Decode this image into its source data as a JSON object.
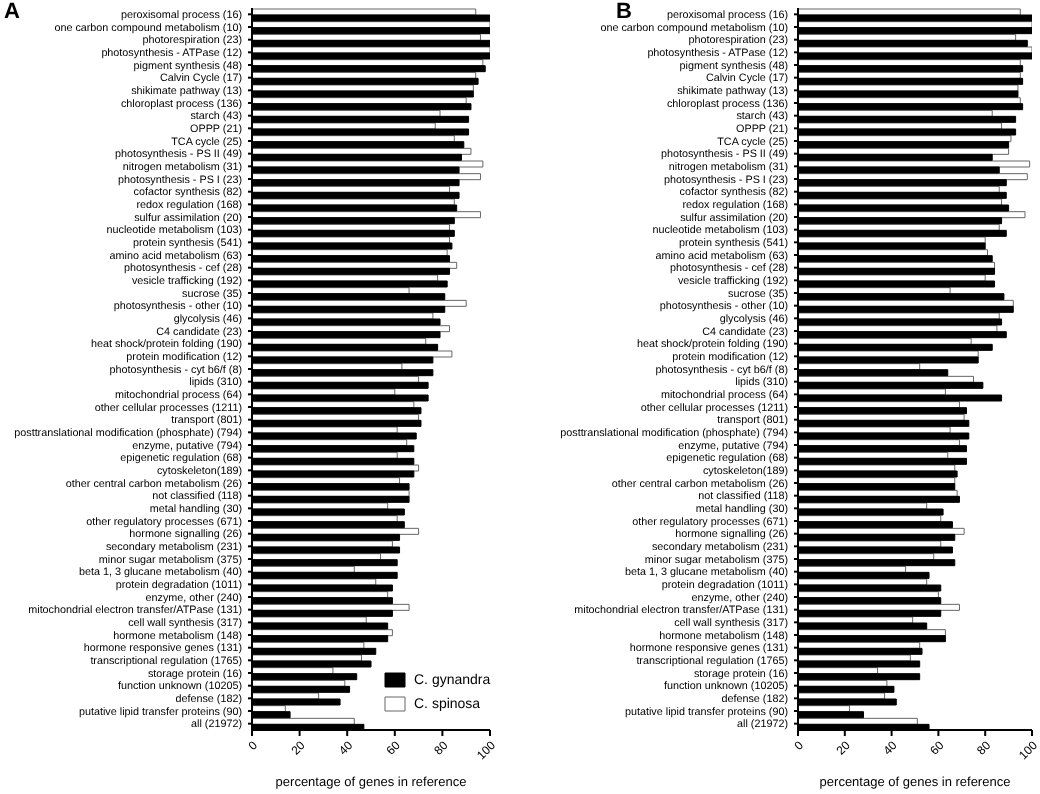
{
  "chart_data": [
    {
      "type": "bar",
      "orientation": "horizontal",
      "title": "A",
      "xlabel": "percentage of genes in reference",
      "xlim": [
        0,
        100
      ],
      "xticks": [
        0,
        20,
        40,
        60,
        80,
        100
      ],
      "legend": "bottom right",
      "categories": [
        "peroxisomal process (16)",
        "one carbon compound metabolism (10)",
        "photorespiration (23)",
        "photosynthesis - ATPase (12)",
        "pigment synthesis (48)",
        "Calvin Cycle (17)",
        "shikimate pathway (13)",
        "chloroplast process (136)",
        "starch (43)",
        "OPPP (21)",
        "TCA cycle (25)",
        "photosynthesis - PS II (49)",
        "nitrogen metabolism (31)",
        "photosynthesis - PS I (23)",
        "cofactor synthesis (82)",
        "redox regulation (168)",
        "sulfur assimilation (20)",
        "nucleotide metabolism (103)",
        "protein synthesis (541)",
        "amino acid metabolism (63)",
        "photosynthesis - cef (28)",
        "vesicle trafficking (192)",
        "sucrose (35)",
        "photosynthesis - other (10)",
        "glycolysis (46)",
        "C4 candidate (23)",
        "heat shock/protein folding (190)",
        "protein modification (12)",
        "photosynthesis - cyt b6/f (8)",
        "lipids (310)",
        "mitochondrial process (64)",
        "other cellular processes (1211)",
        "transport (801)",
        "posttranslational modification (phosphate) (794)",
        "enzyme, putative (794)",
        "epigenetic regulation (68)",
        "cytoskeleton(189)",
        "other central carbon metabolism (26)",
        "not classified (118)",
        "metal handling (30)",
        "other regulatory processes (671)",
        "hormone signalling (26)",
        "secondary metabolism (231)",
        "minor sugar metabolism (375)",
        "beta 1, 3 glucane metabolism (40)",
        "protein degradation (1011)",
        "enzyme, other (240)",
        "mitochondrial electron transfer/ATPase (131)",
        "cell wall synthesis (317)",
        "hormone metabolism (148)",
        "hormone responsive genes (131)",
        "transcriptional regulation (1765)",
        "storage protein (16)",
        "function unknown (10205)",
        "defense (182)",
        "putative lipid transfer proteins (90)",
        "all (21972)"
      ],
      "series": [
        {
          "name": "C. gynandra",
          "color": "#000000",
          "values": [
            100,
            100,
            100,
            100,
            98,
            95,
            93,
            92,
            91,
            91,
            89,
            88,
            87,
            87,
            87,
            86,
            85,
            85,
            84,
            83,
            83,
            82,
            81,
            81,
            79,
            79,
            78,
            76,
            76,
            74,
            74,
            71,
            71,
            69,
            68,
            68,
            68,
            66,
            66,
            64,
            64,
            62,
            62,
            61,
            61,
            59,
            59,
            59,
            57,
            57,
            52,
            50,
            44,
            41,
            37,
            16,
            47
          ]
        },
        {
          "name": "C. spinosa",
          "color": "#ffffff",
          "values": [
            94,
            100,
            96,
            100,
            97,
            94,
            93,
            90,
            79,
            77,
            85,
            92,
            97,
            96,
            83,
            85,
            96,
            83,
            83,
            82,
            86,
            78,
            66,
            90,
            76,
            83,
            73,
            84,
            63,
            70,
            60,
            68,
            70,
            61,
            65,
            61,
            70,
            62,
            66,
            57,
            61,
            70,
            59,
            54,
            43,
            52,
            57,
            66,
            48,
            59,
            47,
            46,
            34,
            39,
            28,
            14,
            43
          ]
        }
      ]
    },
    {
      "type": "bar",
      "orientation": "horizontal",
      "title": "B",
      "xlabel": "percentage of genes in reference",
      "xlim": [
        0,
        100
      ],
      "xticks": [
        0,
        20,
        40,
        60,
        80,
        100
      ],
      "categories": [
        "peroxisomal process (16)",
        "one carbon compound metabolism (10)",
        "photorespiration (23)",
        "photosynthesis - ATPase (12)",
        "pigment synthesis (48)",
        "Calvin Cycle (17)",
        "shikimate pathway (13)",
        "chloroplast process (136)",
        "starch (43)",
        "OPPP (21)",
        "TCA cycle (25)",
        "photosynthesis - PS II (49)",
        "nitrogen metabolism (31)",
        "photosynthesis - PS I (23)",
        "cofactor synthesis (82)",
        "redox regulation (168)",
        "sulfur assimilation (20)",
        "nucleotide metabolism (103)",
        "protein synthesis (541)",
        "amino acid metabolism (63)",
        "photosynthesis - cef (28)",
        "vesicle trafficking (192)",
        "sucrose (35)",
        "photosynthesis - other (10)",
        "glycolysis (46)",
        "C4 candidate (23)",
        "heat shock/protein folding (190)",
        "protein modification (12)",
        "photosynthesis - cyt b6/f (8)",
        "lipids (310)",
        "mitochondrial process (64)",
        "other cellular processes (1211)",
        "transport (801)",
        "posttranslational modification (phosphate) (794)",
        "enzyme, putative (794)",
        "epigenetic regulation (68)",
        "cytoskeleton(189)",
        "other central carbon metabolism (26)",
        "not classified (118)",
        "metal handling (30)",
        "other regulatory processes (671)",
        "hormone signalling (26)",
        "secondary metabolism (231)",
        "minor sugar metabolism (375)",
        "beta 1, 3 glucane metabolism (40)",
        "protein degradation (1011)",
        "enzyme, other (240)",
        "mitochondrial electron transfer/ATPase (131)",
        "cell wall synthesis (317)",
        "hormone metabolism (148)",
        "hormone responsive genes (131)",
        "transcriptional regulation (1765)",
        "storage protein (16)",
        "function unknown (10205)",
        "defense (182)",
        "putative lipid transfer proteins (90)",
        "all (21972)"
      ],
      "series": [
        {
          "color": "#000000",
          "values": [
            100,
            100,
            98,
            100,
            96,
            96,
            94,
            96,
            93,
            93,
            90,
            83,
            86,
            89,
            89,
            90,
            87,
            89,
            80,
            83,
            84,
            84,
            88,
            92,
            87,
            89,
            83,
            77,
            64,
            79,
            87,
            72,
            73,
            73,
            72,
            72,
            68,
            67,
            69,
            62,
            66,
            67,
            66,
            67,
            56,
            61,
            61,
            61,
            55,
            63,
            53,
            52,
            52,
            41,
            42,
            28,
            56
          ]
        },
        {
          "color": "#ffffff",
          "values": [
            95,
            100,
            93,
            100,
            95,
            95,
            94,
            95,
            83,
            87,
            91,
            90,
            99,
            98,
            86,
            87,
            97,
            86,
            80,
            81,
            84,
            80,
            65,
            92,
            86,
            85,
            74,
            77,
            52,
            75,
            63,
            69,
            71,
            65,
            69,
            64,
            67,
            67,
            68,
            55,
            61,
            71,
            61,
            58,
            46,
            55,
            60,
            69,
            49,
            63,
            52,
            48,
            34,
            38,
            37,
            22,
            51
          ]
        }
      ]
    }
  ]
}
